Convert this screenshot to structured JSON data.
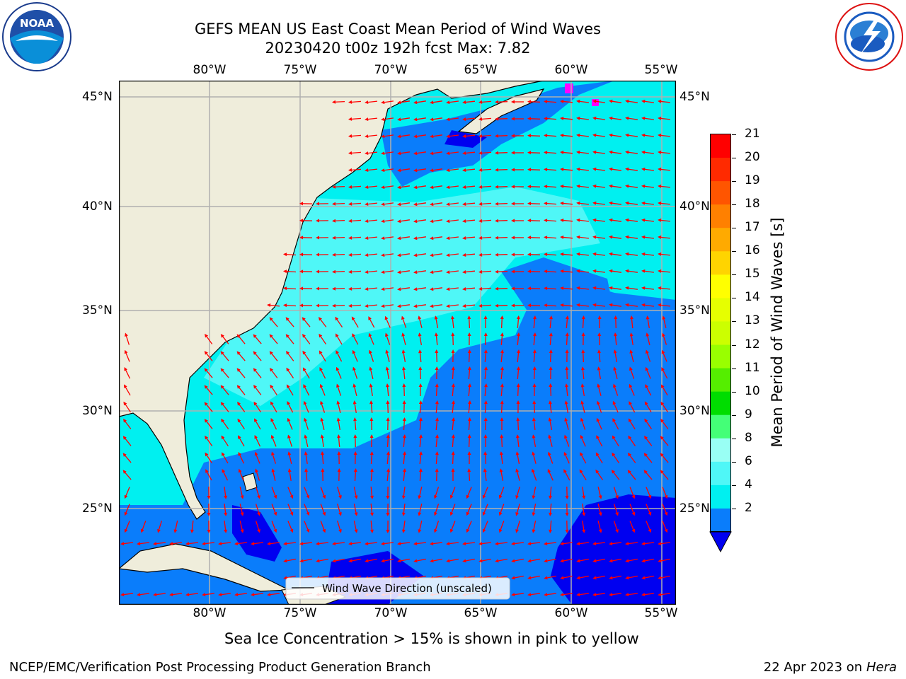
{
  "header": {
    "title_line1": "GEFS MEAN US East Coast Mean Period of Wind Waves",
    "title_line2": "20230420 t00z 192h fcst   Max: 7.82"
  },
  "logos": {
    "left": {
      "name": "NOAA",
      "ring_text": "NATIONAL OCEANIC AND ATMOSPHERIC ADMINISTRATION",
      "ring_text_bottom": "U.S. DEPARTMENT OF COMMERCE"
    },
    "right": {
      "ring_text": "NATIONAL WEATHER SERVICE"
    }
  },
  "map": {
    "lon_labels": [
      "80°W",
      "75°W",
      "70°W",
      "65°W",
      "60°W",
      "55°W"
    ],
    "lat_labels": [
      "45°N",
      "40°N",
      "35°N",
      "30°N",
      "25°N"
    ],
    "legend_label": "Wind Wave Direction (unscaled)",
    "colors": {
      "land": "#efeddb",
      "band_2_4": "#0a7dfb",
      "band_4_6": "#00f0f0",
      "band_6_8": "#4ff7f7",
      "below_2": "#0000f0",
      "arrow": "#ff0000",
      "ice": "#ff00ff"
    }
  },
  "colorbar": {
    "label": "Mean Period of Wind Waves [s]",
    "ticks": [
      "21",
      "20",
      "19",
      "18",
      "17",
      "16",
      "15",
      "14",
      "13",
      "12",
      "11",
      "10",
      "9",
      "8",
      "6",
      "4",
      "2"
    ],
    "colors": [
      "#ff0000",
      "#ff2a00",
      "#ff5500",
      "#ff8000",
      "#ffaa00",
      "#ffd400",
      "#ffff00",
      "#e6ff00",
      "#ccff00",
      "#99ff00",
      "#55ee00",
      "#00dd00",
      "#44ff77",
      "#99fff4",
      "#4ff7f7",
      "#00f0f0",
      "#0a7dfb"
    ],
    "under_color": "#0000f0"
  },
  "note": "Sea Ice Concentration > 15% is shown in pink to yellow",
  "footer": {
    "left": "NCEP/EMC/Verification Post Processing Product Generation Branch",
    "right_prefix": "22 Apr 2023 on ",
    "right_machine": "Hera"
  }
}
